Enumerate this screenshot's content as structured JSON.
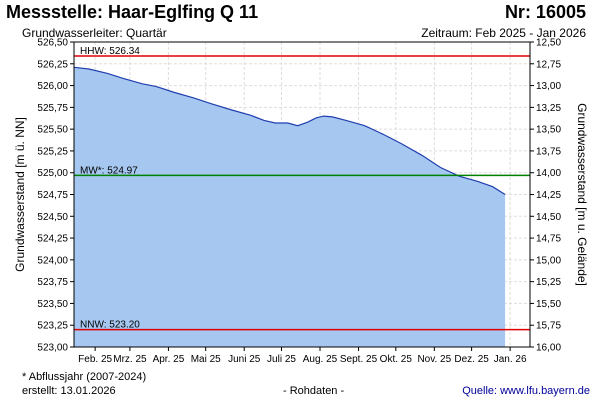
{
  "header": {
    "title": "Messstelle: Haar-Eglfing Q 11",
    "number": "Nr: 16005",
    "subtitle": "Grundwasserleiter: Quartär",
    "period": "Zeitraum: Feb 2025 - Jan 2026"
  },
  "footer": {
    "note": "* Abflussjahr (2007-2024)",
    "created": "erstellt:  13.01.2026",
    "raw": "- Rohdaten -",
    "source": "Quelle: www.lfu.bayern.de"
  },
  "colors": {
    "area_fill": "#a6c8f0",
    "line": "#1f3fb0",
    "hhw": "#e00000",
    "nnw": "#e00000",
    "mw": "#008000",
    "grid": "#dddddd"
  },
  "chart_data": {
    "type": "area",
    "xlabel": "",
    "ylabel": "Grundwasserstand [m ü. NN]",
    "y2label": "Grundwasserstand [m u. Gelände]",
    "xlim": [
      "2025-01-29",
      "2026-01-31"
    ],
    "ylim": [
      523.0,
      526.5
    ],
    "y2lim": [
      16.0,
      12.5
    ],
    "y2_inverted": true,
    "grid": true,
    "x_ticks": [
      "Feb. 25",
      "Mrz. 25",
      "Apr. 25",
      "Mai 25",
      "Juni 25",
      "Juli 25",
      "Aug. 25",
      "Sept. 25",
      "Okt. 25",
      "Nov. 25",
      "Dez. 25",
      "Jan. 26"
    ],
    "x_tick_dates": [
      "2025-02-15",
      "2025-03-15",
      "2025-04-15",
      "2025-05-15",
      "2025-06-15",
      "2025-07-15",
      "2025-08-15",
      "2025-09-15",
      "2025-10-15",
      "2025-11-15",
      "2025-12-15",
      "2026-01-15"
    ],
    "y_ticks": [
      "526,50",
      "526,25",
      "526,00",
      "525,75",
      "525,50",
      "525,25",
      "525,00",
      "524,75",
      "524,50",
      "524,25",
      "524,00",
      "523,75",
      "523,50",
      "523,25",
      "523,00"
    ],
    "y_tick_values": [
      526.5,
      526.25,
      526.0,
      525.75,
      525.5,
      525.25,
      525.0,
      524.75,
      524.5,
      524.25,
      524.0,
      523.75,
      523.5,
      523.25,
      523.0
    ],
    "y2_ticks": [
      "12,50",
      "12,75",
      "13,00",
      "13,25",
      "13,50",
      "13,75",
      "14,00",
      "14,25",
      "14,50",
      "14,75",
      "15,00",
      "15,25",
      "15,50",
      "15,75",
      "16,00"
    ],
    "y2_tick_values": [
      12.5,
      12.75,
      13.0,
      13.25,
      13.5,
      13.75,
      14.0,
      14.25,
      14.5,
      14.75,
      15.0,
      15.25,
      15.5,
      15.75,
      16.0
    ],
    "reference_lines": [
      {
        "label": "HHW: 526.34",
        "value": 526.34,
        "color": "#e00000"
      },
      {
        "label": "MW*: 524.97",
        "value": 524.97,
        "color": "#008000"
      },
      {
        "label": "NNW: 523.20",
        "value": 523.2,
        "color": "#e00000"
      }
    ],
    "series": [
      {
        "values": [
          {
            "x": "2025-01-29",
            "y": 526.21
          },
          {
            "x": "2025-02-10",
            "y": 526.19
          },
          {
            "x": "2025-02-25",
            "y": 526.14
          },
          {
            "x": "2025-03-10",
            "y": 526.08
          },
          {
            "x": "2025-03-25",
            "y": 526.02
          },
          {
            "x": "2025-04-05",
            "y": 525.99
          },
          {
            "x": "2025-04-20",
            "y": 525.92
          },
          {
            "x": "2025-05-05",
            "y": 525.86
          },
          {
            "x": "2025-05-20",
            "y": 525.79
          },
          {
            "x": "2025-06-05",
            "y": 525.72
          },
          {
            "x": "2025-06-20",
            "y": 525.66
          },
          {
            "x": "2025-07-01",
            "y": 525.6
          },
          {
            "x": "2025-07-10",
            "y": 525.57
          },
          {
            "x": "2025-07-20",
            "y": 525.57
          },
          {
            "x": "2025-07-28",
            "y": 525.54
          },
          {
            "x": "2025-08-05",
            "y": 525.58
          },
          {
            "x": "2025-08-12",
            "y": 525.63
          },
          {
            "x": "2025-08-18",
            "y": 525.65
          },
          {
            "x": "2025-08-25",
            "y": 525.64
          },
          {
            "x": "2025-09-05",
            "y": 525.6
          },
          {
            "x": "2025-09-20",
            "y": 525.54
          },
          {
            "x": "2025-10-05",
            "y": 525.44
          },
          {
            "x": "2025-10-20",
            "y": 525.33
          },
          {
            "x": "2025-11-05",
            "y": 525.2
          },
          {
            "x": "2025-11-20",
            "y": 525.06
          },
          {
            "x": "2025-12-05",
            "y": 524.96
          },
          {
            "x": "2025-12-20",
            "y": 524.9
          },
          {
            "x": "2026-01-01",
            "y": 524.84
          },
          {
            "x": "2026-01-11",
            "y": 524.75
          }
        ]
      }
    ]
  }
}
